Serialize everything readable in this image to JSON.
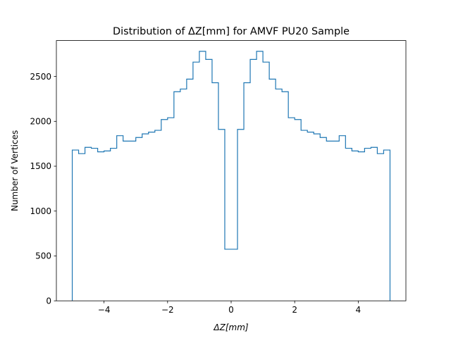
{
  "chart_data": {
    "type": "histogram",
    "title": "Distribution of ΔZ[mm] for AMVF PU20 Sample",
    "xlabel": "ΔZ[mm]",
    "ylabel": "Number of Vertices",
    "xlim": [
      -5.5,
      5.5
    ],
    "ylim": [
      0,
      2900
    ],
    "xticks": [
      -4,
      -2,
      0,
      2,
      4
    ],
    "xtick_labels": [
      "−4",
      "−2",
      "0",
      "2",
      "4"
    ],
    "yticks": [
      0,
      500,
      1000,
      1500,
      2000,
      2500
    ],
    "yticks_labels": [
      "0",
      "500",
      "1000",
      "1500",
      "2000",
      "2500"
    ],
    "grid": false,
    "style": "step",
    "color": "#1f77b4",
    "bin_edges": [
      -5.0,
      -4.8,
      -4.6,
      -4.4,
      -4.2,
      -4.0,
      -3.8,
      -3.6,
      -3.4,
      -3.2,
      -3.0,
      -2.8,
      -2.6,
      -2.4,
      -2.2,
      -2.0,
      -1.8,
      -1.6,
      -1.4,
      -1.2,
      -1.0,
      -0.8,
      -0.6,
      -0.4,
      -0.2,
      0.0,
      0.2,
      0.4,
      0.6,
      0.8,
      1.0,
      1.2,
      1.4,
      1.6,
      1.8,
      2.0,
      2.2,
      2.4,
      2.6,
      2.8,
      3.0,
      3.2,
      3.4,
      3.6,
      3.8,
      4.0,
      4.2,
      4.4,
      4.6,
      4.8,
      5.0
    ],
    "counts": [
      1680,
      1640,
      1710,
      1700,
      1660,
      1670,
      1700,
      1840,
      1780,
      1780,
      1820,
      1860,
      1880,
      1900,
      2020,
      2040,
      2330,
      2360,
      2470,
      2660,
      2780,
      2690,
      2430,
      1910,
      575,
      575,
      1910,
      2430,
      2690,
      2780,
      2660,
      2470,
      2360,
      2330,
      2040,
      2020,
      1900,
      1880,
      1860,
      1820,
      1780,
      1780,
      1840,
      1700,
      1670,
      1660,
      1700,
      1710,
      1640,
      1680
    ]
  }
}
